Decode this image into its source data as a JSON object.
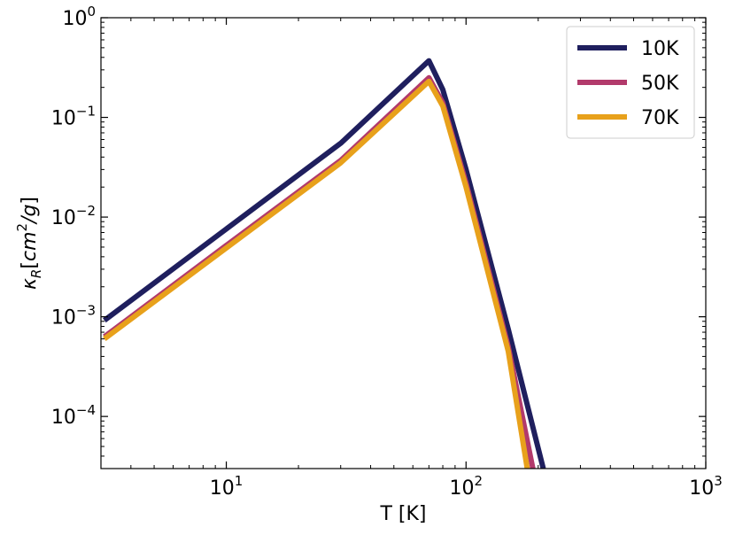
{
  "chart_data": {
    "type": "line",
    "xlabel": "T [K]",
    "ylabel": {
      "prefix": "κ",
      "sub": "R",
      "open": "[",
      "unit_base": "cm",
      "unit_exp": "2",
      "unit_rest": "/g",
      "close": "]"
    },
    "xscale": "log",
    "yscale": "log",
    "xlim": [
      3,
      1000
    ],
    "ylim": [
      3e-05,
      1
    ],
    "grid": false,
    "legend_position": "top-right",
    "x_ticks": [
      {
        "value": 10,
        "base": "10",
        "exp": "1"
      },
      {
        "value": 100,
        "base": "10",
        "exp": "2"
      },
      {
        "value": 1000,
        "base": "10",
        "exp": "3"
      }
    ],
    "y_ticks": [
      {
        "value": 0.0001,
        "base": "10",
        "exp": "−4"
      },
      {
        "value": 0.001,
        "base": "10",
        "exp": "−3"
      },
      {
        "value": 0.01,
        "base": "10",
        "exp": "−2"
      },
      {
        "value": 0.1,
        "base": "10",
        "exp": "−1"
      },
      {
        "value": 1,
        "base": "10",
        "exp": "0"
      }
    ],
    "series": [
      {
        "name": "10K",
        "color": "#1f1f5e",
        "points": [
          [
            3.1,
            0.00092
          ],
          [
            10,
            0.0076
          ],
          [
            30,
            0.055
          ],
          [
            70,
            0.37
          ],
          [
            80,
            0.19
          ],
          [
            100,
            0.03
          ],
          [
            150,
            0.00075
          ],
          [
            210,
            3e-05
          ]
        ]
      },
      {
        "name": "50K",
        "color": "#b23a6b",
        "points": [
          [
            3.1,
            0.00063
          ],
          [
            10,
            0.0052
          ],
          [
            30,
            0.037
          ],
          [
            70,
            0.25
          ],
          [
            80,
            0.14
          ],
          [
            100,
            0.022
          ],
          [
            150,
            0.0005
          ],
          [
            190,
            3e-05
          ]
        ]
      },
      {
        "name": "70K",
        "color": "#e8a11b",
        "points": [
          [
            3.1,
            0.0006
          ],
          [
            10,
            0.0049
          ],
          [
            30,
            0.035
          ],
          [
            70,
            0.23
          ],
          [
            80,
            0.13
          ],
          [
            100,
            0.02
          ],
          [
            150,
            0.00045
          ],
          [
            180,
            3e-05
          ]
        ]
      }
    ]
  }
}
